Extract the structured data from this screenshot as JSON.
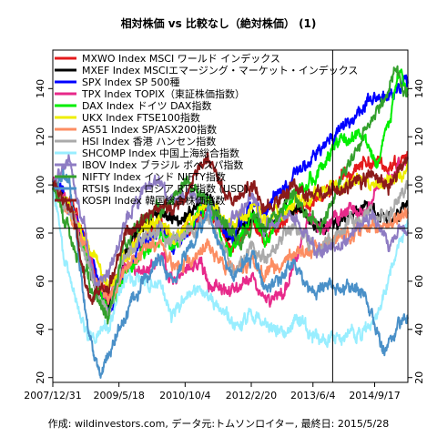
{
  "chart_data": {
    "type": "line",
    "title": "相対株価 vs 比較なし（絶対株価） (1)",
    "caption": "作成: wildinvestors.com, データ元:トムソンロイター, 最終日: 2015/5/28",
    "x_range": [
      "2007-12-31",
      "2015-05-28"
    ],
    "ylim": [
      18,
      156
    ],
    "y_ticks": [
      20,
      40,
      60,
      80,
      100,
      120,
      140
    ],
    "x_ticks": [
      "2007/12/31",
      "2009/5/18",
      "2010/10/4",
      "2012/2/20",
      "2013/6/4",
      "2014/9/17"
    ],
    "reference_hline": 82,
    "reference_vline": "2013-11-01",
    "legend_position": "top-left",
    "grid": false,
    "series": [
      {
        "name": "MXWO Index MSCI ワールド インデックス",
        "color": "#e41a1c",
        "width": 2.0,
        "points": [
          [
            "2008-01-01",
            100
          ],
          [
            "2008-06-01",
            92
          ],
          [
            "2008-12-01",
            60
          ],
          [
            "2009-03-01",
            52
          ],
          [
            "2009-07-01",
            70
          ],
          [
            "2009-12-01",
            80
          ],
          [
            "2010-04-01",
            84
          ],
          [
            "2010-07-01",
            76
          ],
          [
            "2011-04-01",
            90
          ],
          [
            "2011-10-01",
            74
          ],
          [
            "2012-03-01",
            85
          ],
          [
            "2012-06-01",
            78
          ],
          [
            "2013-01-01",
            90
          ],
          [
            "2013-07-01",
            94
          ],
          [
            "2014-01-01",
            102
          ],
          [
            "2014-07-01",
            110
          ],
          [
            "2015-01-01",
            108
          ],
          [
            "2015-05-28",
            112
          ]
        ]
      },
      {
        "name": "MXEF Index MSCIエマージング・マーケット・インデックス",
        "color": "#000000",
        "width": 2.0,
        "points": [
          [
            "2008-01-01",
            100
          ],
          [
            "2008-06-01",
            90
          ],
          [
            "2008-12-01",
            55
          ],
          [
            "2009-03-01",
            48
          ],
          [
            "2009-07-01",
            70
          ],
          [
            "2009-12-01",
            85
          ],
          [
            "2010-04-01",
            90
          ],
          [
            "2010-07-01",
            84
          ],
          [
            "2011-04-01",
            96
          ],
          [
            "2011-10-01",
            76
          ],
          [
            "2012-03-01",
            88
          ],
          [
            "2012-06-01",
            80
          ],
          [
            "2013-01-01",
            92
          ],
          [
            "2013-07-01",
            82
          ],
          [
            "2014-01-01",
            84
          ],
          [
            "2014-07-01",
            92
          ],
          [
            "2015-01-01",
            86
          ],
          [
            "2015-05-28",
            90
          ]
        ]
      },
      {
        "name": "SPX Index SP 500種",
        "color": "#0000ff",
        "width": 2.0,
        "points": [
          [
            "2008-01-01",
            100
          ],
          [
            "2008-06-01",
            90
          ],
          [
            "2008-12-01",
            62
          ],
          [
            "2009-03-01",
            48
          ],
          [
            "2009-07-01",
            64
          ],
          [
            "2009-12-01",
            76
          ],
          [
            "2010-04-01",
            83
          ],
          [
            "2010-07-01",
            74
          ],
          [
            "2011-04-01",
            92
          ],
          [
            "2011-10-01",
            78
          ],
          [
            "2012-03-01",
            94
          ],
          [
            "2012-06-01",
            89
          ],
          [
            "2013-01-01",
            102
          ],
          [
            "2013-07-01",
            112
          ],
          [
            "2014-01-01",
            124
          ],
          [
            "2014-07-01",
            132
          ],
          [
            "2015-01-01",
            138
          ],
          [
            "2015-05-28",
            143
          ]
        ]
      },
      {
        "name": "TPX Index TOPIX（東証株価指数）",
        "color": "#e7298a",
        "width": 2.0,
        "points": [
          [
            "2008-01-01",
            100
          ],
          [
            "2008-06-01",
            88
          ],
          [
            "2008-12-01",
            60
          ],
          [
            "2009-03-01",
            52
          ],
          [
            "2009-07-01",
            66
          ],
          [
            "2009-12-01",
            64
          ],
          [
            "2010-04-01",
            70
          ],
          [
            "2010-07-01",
            60
          ],
          [
            "2011-02-01",
            68
          ],
          [
            "2011-04-01",
            58
          ],
          [
            "2011-10-01",
            55
          ],
          [
            "2012-03-01",
            62
          ],
          [
            "2012-06-01",
            52
          ],
          [
            "2012-11-01",
            54
          ],
          [
            "2013-05-01",
            88
          ],
          [
            "2013-07-01",
            80
          ],
          [
            "2014-01-01",
            88
          ],
          [
            "2014-07-01",
            90
          ],
          [
            "2015-01-01",
            102
          ],
          [
            "2015-05-28",
            112
          ]
        ]
      },
      {
        "name": "DAX Index ドイツ DAX指数",
        "color": "#00ee00",
        "width": 2.0,
        "points": [
          [
            "2008-01-01",
            100
          ],
          [
            "2008-06-01",
            86
          ],
          [
            "2008-12-01",
            58
          ],
          [
            "2009-03-01",
            46
          ],
          [
            "2009-07-01",
            64
          ],
          [
            "2009-12-01",
            74
          ],
          [
            "2010-04-01",
            78
          ],
          [
            "2010-07-01",
            76
          ],
          [
            "2011-04-01",
            92
          ],
          [
            "2011-09-01",
            70
          ],
          [
            "2012-03-01",
            88
          ],
          [
            "2012-06-01",
            76
          ],
          [
            "2013-01-01",
            96
          ],
          [
            "2013-07-01",
            104
          ],
          [
            "2014-01-01",
            118
          ],
          [
            "2014-07-01",
            120
          ],
          [
            "2014-10-01",
            110
          ],
          [
            "2015-01-01",
            124
          ],
          [
            "2015-04-01",
            150
          ],
          [
            "2015-05-28",
            140
          ]
        ]
      },
      {
        "name": "UKX Index FTSE100指数",
        "color": "#eeee00",
        "width": 2.0,
        "points": [
          [
            "2008-01-01",
            100
          ],
          [
            "2008-06-01",
            88
          ],
          [
            "2008-12-01",
            68
          ],
          [
            "2009-03-01",
            58
          ],
          [
            "2009-07-01",
            70
          ],
          [
            "2009-12-01",
            82
          ],
          [
            "2010-04-01",
            86
          ],
          [
            "2010-07-01",
            78
          ],
          [
            "2011-04-01",
            92
          ],
          [
            "2011-10-01",
            82
          ],
          [
            "2012-03-01",
            90
          ],
          [
            "2012-06-01",
            84
          ],
          [
            "2013-01-01",
            92
          ],
          [
            "2013-07-01",
            96
          ],
          [
            "2014-01-01",
            100
          ],
          [
            "2014-07-01",
            102
          ],
          [
            "2015-01-01",
            100
          ],
          [
            "2015-05-28",
            108
          ]
        ]
      },
      {
        "name": "AS51 Index SP/ASX200指数",
        "color": "#fc8d62",
        "width": 2.0,
        "points": [
          [
            "2008-01-01",
            100
          ],
          [
            "2008-06-01",
            84
          ],
          [
            "2008-12-01",
            60
          ],
          [
            "2009-03-01",
            52
          ],
          [
            "2009-07-01",
            64
          ],
          [
            "2009-12-01",
            74
          ],
          [
            "2010-04-01",
            76
          ],
          [
            "2010-07-01",
            66
          ],
          [
            "2011-04-01",
            74
          ],
          [
            "2011-10-01",
            64
          ],
          [
            "2012-03-01",
            68
          ],
          [
            "2012-06-01",
            62
          ],
          [
            "2013-01-01",
            72
          ],
          [
            "2013-07-01",
            74
          ],
          [
            "2014-01-01",
            78
          ],
          [
            "2014-07-01",
            82
          ],
          [
            "2015-01-01",
            82
          ],
          [
            "2015-05-28",
            88
          ]
        ]
      },
      {
        "name": "HSI Index 香港 ハンセン指数",
        "color": "#aaaaaa",
        "width": 2.0,
        "points": [
          [
            "2008-01-01",
            100
          ],
          [
            "2008-06-01",
            86
          ],
          [
            "2008-12-01",
            54
          ],
          [
            "2009-03-01",
            48
          ],
          [
            "2009-07-01",
            70
          ],
          [
            "2009-12-01",
            80
          ],
          [
            "2010-04-01",
            82
          ],
          [
            "2010-07-01",
            76
          ],
          [
            "2011-04-01",
            86
          ],
          [
            "2011-10-01",
            64
          ],
          [
            "2012-03-01",
            76
          ],
          [
            "2012-06-01",
            70
          ],
          [
            "2013-01-01",
            82
          ],
          [
            "2013-07-01",
            74
          ],
          [
            "2014-01-01",
            80
          ],
          [
            "2014-07-01",
            88
          ],
          [
            "2015-01-01",
            86
          ],
          [
            "2015-05-28",
            100
          ]
        ]
      },
      {
        "name": "SHCOMP Index 中国上海総合指数",
        "color": "#99eeff",
        "width": 2.0,
        "points": [
          [
            "2008-01-01",
            100
          ],
          [
            "2008-04-01",
            68
          ],
          [
            "2008-10-01",
            36
          ],
          [
            "2009-03-01",
            42
          ],
          [
            "2009-07-01",
            62
          ],
          [
            "2009-12-01",
            60
          ],
          [
            "2010-04-01",
            56
          ],
          [
            "2010-07-01",
            46
          ],
          [
            "2010-11-01",
            56
          ],
          [
            "2011-04-01",
            54
          ],
          [
            "2011-10-01",
            44
          ],
          [
            "2012-03-01",
            45
          ],
          [
            "2012-11-01",
            38
          ],
          [
            "2013-02-01",
            44
          ],
          [
            "2013-07-01",
            36
          ],
          [
            "2014-01-01",
            38
          ],
          [
            "2014-06-01",
            38
          ],
          [
            "2014-10-01",
            44
          ],
          [
            "2015-01-01",
            62
          ],
          [
            "2015-05-28",
            84
          ]
        ]
      },
      {
        "name": "IBOV Index ブラジル ボベスパ指数",
        "color": "#8e7cc3",
        "width": 2.0,
        "points": [
          [
            "2008-01-01",
            100
          ],
          [
            "2008-05-01",
            112
          ],
          [
            "2008-12-01",
            58
          ],
          [
            "2009-03-01",
            64
          ],
          [
            "2009-07-01",
            84
          ],
          [
            "2009-12-01",
            100
          ],
          [
            "2010-04-01",
            100
          ],
          [
            "2010-07-01",
            94
          ],
          [
            "2011-01-01",
            96
          ],
          [
            "2011-08-01",
            82
          ],
          [
            "2012-03-01",
            96
          ],
          [
            "2012-06-01",
            82
          ],
          [
            "2013-01-01",
            88
          ],
          [
            "2013-07-01",
            72
          ],
          [
            "2014-01-01",
            74
          ],
          [
            "2014-09-01",
            88
          ],
          [
            "2015-01-01",
            76
          ],
          [
            "2015-05-28",
            82
          ]
        ]
      },
      {
        "name": "NIFTY Index インド NIFTY指数",
        "color": "#33a02c",
        "width": 2.0,
        "points": [
          [
            "2008-01-01",
            100
          ],
          [
            "2008-06-01",
            76
          ],
          [
            "2008-12-01",
            52
          ],
          [
            "2009-03-01",
            46
          ],
          [
            "2009-07-01",
            76
          ],
          [
            "2009-12-01",
            86
          ],
          [
            "2010-04-01",
            90
          ],
          [
            "2010-11-01",
            102
          ],
          [
            "2011-04-01",
            92
          ],
          [
            "2011-12-01",
            76
          ],
          [
            "2012-03-01",
            88
          ],
          [
            "2012-06-01",
            82
          ],
          [
            "2013-01-01",
            96
          ],
          [
            "2013-08-01",
            82
          ],
          [
            "2014-01-01",
            102
          ],
          [
            "2014-07-01",
            122
          ],
          [
            "2015-01-01",
            138
          ],
          [
            "2015-03-01",
            146
          ],
          [
            "2015-05-28",
            136
          ]
        ]
      },
      {
        "name": "RTSI$ Index ロシア RTS指数 (USD)",
        "color": "#4a90c8",
        "width": 2.0,
        "points": [
          [
            "2008-01-01",
            100
          ],
          [
            "2008-05-01",
            104
          ],
          [
            "2008-10-01",
            36
          ],
          [
            "2009-01-01",
            22
          ],
          [
            "2009-06-01",
            42
          ],
          [
            "2009-12-01",
            62
          ],
          [
            "2010-04-01",
            68
          ],
          [
            "2010-07-01",
            60
          ],
          [
            "2011-04-01",
            88
          ],
          [
            "2011-10-01",
            60
          ],
          [
            "2012-03-01",
            72
          ],
          [
            "2012-06-01",
            56
          ],
          [
            "2013-01-01",
            66
          ],
          [
            "2013-07-01",
            56
          ],
          [
            "2014-01-01",
            58
          ],
          [
            "2014-07-01",
            56
          ],
          [
            "2014-12-01",
            30
          ],
          [
            "2015-01-01",
            34
          ],
          [
            "2015-05-28",
            46
          ]
        ]
      },
      {
        "name": "KOSPI Index 韓国総合株価指数",
        "color": "#8b1a1a",
        "width": 2.0,
        "points": [
          [
            "2008-01-01",
            100
          ],
          [
            "2008-06-01",
            88
          ],
          [
            "2008-10-01",
            52
          ],
          [
            "2009-03-01",
            58
          ],
          [
            "2009-07-01",
            78
          ],
          [
            "2009-12-01",
            86
          ],
          [
            "2010-04-01",
            92
          ],
          [
            "2010-07-01",
            88
          ],
          [
            "2011-04-01",
            112
          ],
          [
            "2011-10-01",
            92
          ],
          [
            "2012-03-01",
            100
          ],
          [
            "2012-06-01",
            90
          ],
          [
            "2013-01-01",
            98
          ],
          [
            "2013-07-01",
            96
          ],
          [
            "2014-01-01",
            98
          ],
          [
            "2014-07-01",
            104
          ],
          [
            "2015-01-01",
            100
          ],
          [
            "2015-05-28",
            112
          ]
        ]
      }
    ]
  }
}
